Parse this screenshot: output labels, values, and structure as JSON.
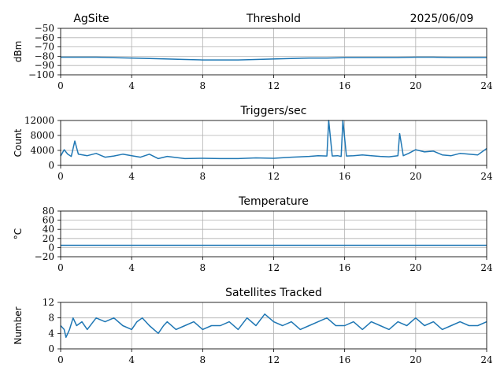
{
  "header": {
    "site": "AgSite",
    "date": "2025/06/09"
  },
  "colors": {
    "series": "#1f77b4",
    "grid": "#b0b0b0"
  },
  "chart_data": [
    {
      "type": "line",
      "title": "Threshold",
      "ylabel": "dBm",
      "xlim": [
        0,
        24
      ],
      "ylim": [
        -100,
        -50
      ],
      "xticks": [
        0,
        4,
        8,
        12,
        16,
        20,
        24
      ],
      "yticks": [
        -100,
        -90,
        -80,
        -70,
        -60,
        -50
      ],
      "ytick_labels": [
        "−100",
        "−90",
        "−80",
        "−70",
        "−60",
        "−50"
      ],
      "grid": true,
      "series": [
        {
          "x": [
            0,
            1,
            2,
            3,
            4,
            5,
            6,
            7,
            8,
            9,
            10,
            11,
            12,
            13,
            14,
            15,
            16,
            17,
            18,
            19,
            20,
            21,
            22,
            23,
            24
          ],
          "y": [
            -81,
            -81,
            -81,
            -81.5,
            -82,
            -82.5,
            -83,
            -83.5,
            -84,
            -84,
            -84,
            -83.5,
            -83,
            -82.5,
            -82,
            -82,
            -81.5,
            -81.5,
            -81.5,
            -81.5,
            -81,
            -81,
            -81.5,
            -81.5,
            -81.5
          ]
        }
      ]
    },
    {
      "type": "line",
      "title": "Triggers/sec",
      "ylabel": "Count",
      "xlim": [
        0,
        24
      ],
      "ylim": [
        0,
        12000
      ],
      "xticks": [
        0,
        4,
        8,
        12,
        16,
        20,
        24
      ],
      "yticks": [
        0,
        4000,
        8000,
        12000
      ],
      "ytick_labels": [
        "0",
        "4000",
        "8000",
        "12000"
      ],
      "grid": true,
      "series": [
        {
          "x": [
            0,
            0.2,
            0.4,
            0.6,
            0.8,
            1,
            1.5,
            2,
            2.5,
            3,
            3.5,
            4,
            4.5,
            5,
            5.5,
            6,
            7,
            8,
            9,
            10,
            11,
            12,
            13,
            14,
            14.5,
            15,
            15.1,
            15.3,
            15.6,
            15.8,
            15.9,
            16.1,
            16.5,
            17,
            17.5,
            18,
            18.5,
            19,
            19.1,
            19.3,
            19.6,
            20,
            20.5,
            21,
            21.5,
            22,
            22.5,
            23,
            23.5,
            24
          ],
          "y": [
            2500,
            4200,
            3000,
            2400,
            6500,
            3000,
            2600,
            3200,
            2200,
            2500,
            3000,
            2600,
            2200,
            3000,
            1800,
            2400,
            1800,
            1900,
            1800,
            1800,
            2000,
            1900,
            2200,
            2400,
            2600,
            2500,
            12000,
            2500,
            2600,
            2400,
            12000,
            2500,
            2600,
            2800,
            2600,
            2400,
            2300,
            2600,
            8500,
            2600,
            3200,
            4200,
            3600,
            3800,
            2800,
            2600,
            3200,
            3000,
            2800,
            4500
          ]
        }
      ]
    },
    {
      "type": "line",
      "title": "Temperature",
      "ylabel": "°C",
      "xlim": [
        0,
        24
      ],
      "ylim": [
        -20,
        80
      ],
      "xticks": [
        0,
        4,
        8,
        12,
        16,
        20,
        24
      ],
      "yticks": [
        -20,
        0,
        20,
        40,
        60,
        80
      ],
      "ytick_labels": [
        "−20",
        "0",
        "20",
        "40",
        "60",
        "80"
      ],
      "grid": true,
      "series": [
        {
          "x": [
            0,
            24
          ],
          "y": [
            5,
            5
          ]
        }
      ]
    },
    {
      "type": "line",
      "title": "Satellites Tracked",
      "ylabel": "Number",
      "xlim": [
        0,
        24
      ],
      "ylim": [
        0,
        12
      ],
      "xticks": [
        0,
        4,
        8,
        12,
        16,
        20,
        24
      ],
      "yticks": [
        0,
        4,
        8,
        12
      ],
      "ytick_labels": [
        "0",
        "4",
        "8",
        "12"
      ],
      "grid": true,
      "series": [
        {
          "x": [
            0,
            0.2,
            0.3,
            0.5,
            0.7,
            0.9,
            1.2,
            1.5,
            2,
            2.5,
            3,
            3.5,
            4,
            4.3,
            4.6,
            5,
            5.5,
            5.8,
            6,
            6.5,
            7,
            7.5,
            8,
            8.5,
            9,
            9.5,
            10,
            10.5,
            11,
            11.5,
            12,
            12.5,
            13,
            13.5,
            14,
            14.5,
            15,
            15.5,
            16,
            16.5,
            17,
            17.5,
            18,
            18.5,
            19,
            19.5,
            20,
            20.5,
            21,
            21.5,
            22,
            22.5,
            23,
            23.5,
            24
          ],
          "y": [
            6,
            5,
            3,
            5,
            8,
            6,
            7,
            5,
            8,
            7,
            8,
            6,
            5,
            7,
            8,
            6,
            4,
            6,
            7,
            5,
            6,
            7,
            5,
            6,
            6,
            7,
            5,
            8,
            6,
            9,
            7,
            6,
            7,
            5,
            6,
            7,
            8,
            6,
            6,
            7,
            5,
            7,
            6,
            5,
            7,
            6,
            8,
            6,
            7,
            5,
            6,
            7,
            6,
            6,
            7
          ]
        }
      ]
    }
  ]
}
